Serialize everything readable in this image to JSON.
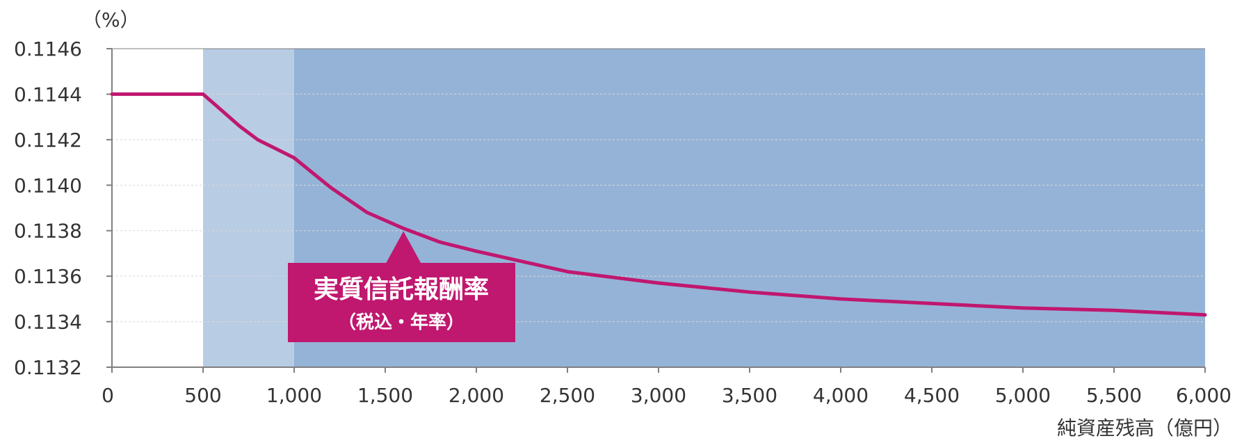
{
  "colors": {
    "line": "#C0176F",
    "band_light": "#B8CCE4",
    "band_dark": "#95B3D7",
    "callout_bg": "#C0176F",
    "axis": "#7F7F7F",
    "grid": "#D9D9D9"
  },
  "chart_data": {
    "type": "line",
    "yunit": "（%）",
    "xlabel": "純資産残高（億円）",
    "xlim": [
      0,
      6000
    ],
    "ylim": [
      0.1132,
      0.1146
    ],
    "xticks": [
      0,
      500,
      1000,
      1500,
      2000,
      2500,
      3000,
      3500,
      4000,
      4500,
      5000,
      5500,
      6000
    ],
    "xtick_labels": [
      "0",
      "500",
      "1,000",
      "1,500",
      "2,000",
      "2,500",
      "3,000",
      "3,500",
      "4,000",
      "4,500",
      "5,000",
      "5,500",
      "6,000"
    ],
    "yticks": [
      0.1132,
      0.1134,
      0.1136,
      0.1138,
      0.114,
      0.1142,
      0.1144,
      0.1146
    ],
    "ytick_labels": [
      "0.1132",
      "0.1134",
      "0.1136",
      "0.1138",
      "0.1140",
      "0.1142",
      "0.1144",
      "0.1146"
    ],
    "grid": true,
    "bands": [
      {
        "from": 500,
        "to": 1000,
        "shade": "light"
      },
      {
        "from": 1000,
        "to": 6000,
        "shade": "dark"
      }
    ],
    "series": [
      {
        "name": "実質信託報酬率（税込・年率）",
        "x": [
          0,
          500,
          600,
          700,
          800,
          900,
          1000,
          1200,
          1400,
          1600,
          1800,
          2000,
          2500,
          3000,
          3500,
          4000,
          4500,
          5000,
          5500,
          6000
        ],
        "values": [
          0.1144,
          0.1144,
          0.11433,
          0.11426,
          0.1142,
          0.11416,
          0.11412,
          0.11399,
          0.11388,
          0.11381,
          0.11375,
          0.11371,
          0.11362,
          0.11357,
          0.11353,
          0.1135,
          0.11348,
          0.11346,
          0.11345,
          0.11343
        ]
      }
    ],
    "annotation": {
      "title": "実質信託報酬率",
      "subtitle": "（税込・年率）",
      "points_to_x": 1600
    }
  }
}
